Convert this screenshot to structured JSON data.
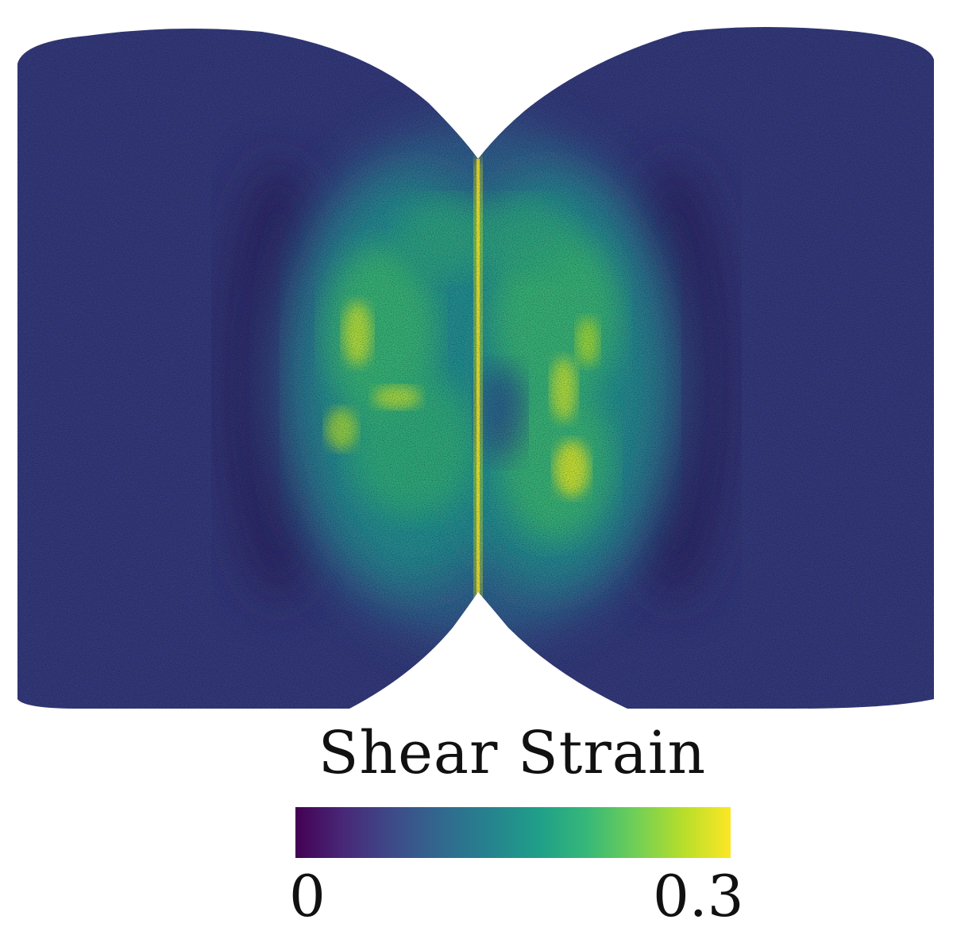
{
  "colorbar": {
    "title": "Shear Strain",
    "min_label": "0",
    "max_label": "0.3",
    "colormap": "viridis",
    "stops": [
      "#440154",
      "#482878",
      "#3e4a89",
      "#31688e",
      "#26828e",
      "#1f9e89",
      "#35b779",
      "#6ece58",
      "#b5de2b",
      "#fde725"
    ]
  },
  "field": {
    "background_color": "#33397a"
  }
}
